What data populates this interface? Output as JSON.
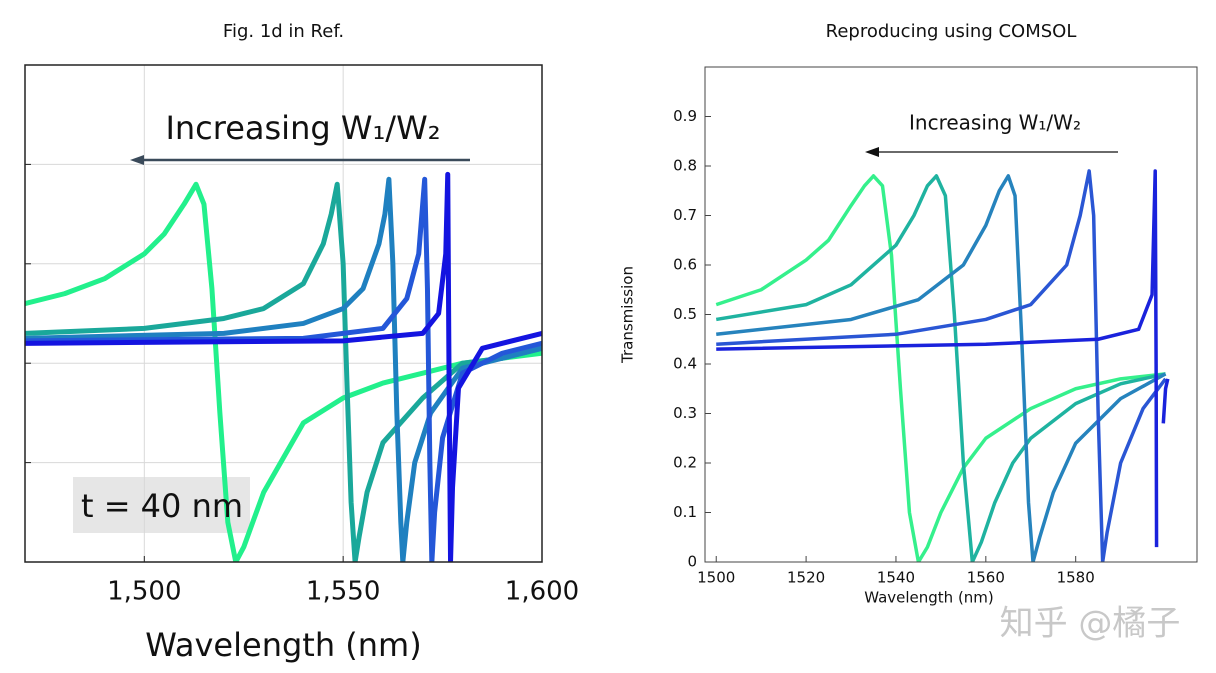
{
  "chart_data": [
    {
      "type": "line",
      "title": "Fig. 1d in Ref.",
      "x_label": "Wavelength (nm)",
      "annotations": [
        "Increasing W₁/W₂",
        "t = 40 nm"
      ],
      "xlim": [
        1470,
        1600
      ],
      "ylim": [
        0,
        1
      ],
      "xticks": [
        {
          "value": 1500,
          "label": "1,500"
        },
        {
          "value": 1550,
          "label": "1,550"
        },
        {
          "value": 1600,
          "label": "1,600"
        }
      ],
      "yticks": [
        0.2,
        0.4,
        0.6,
        0.8
      ],
      "show_ytick_labels": false,
      "grid": true,
      "series": [
        {
          "color": "#22f08c",
          "x": [
            1470,
            1480,
            1490,
            1500,
            1505,
            1510,
            1513,
            1515,
            1517,
            1519,
            1521,
            1523,
            1525,
            1530,
            1540,
            1550,
            1560,
            1570,
            1580,
            1590,
            1600
          ],
          "values": [
            0.52,
            0.54,
            0.57,
            0.62,
            0.66,
            0.72,
            0.76,
            0.72,
            0.55,
            0.3,
            0.08,
            0.0,
            0.03,
            0.14,
            0.28,
            0.33,
            0.36,
            0.38,
            0.4,
            0.41,
            0.42
          ]
        },
        {
          "color": "#1aa89a",
          "x": [
            1470,
            1500,
            1520,
            1530,
            1540,
            1545,
            1547,
            1548.5,
            1550,
            1551,
            1552,
            1553,
            1554,
            1556,
            1560,
            1570,
            1580,
            1590,
            1600
          ],
          "values": [
            0.46,
            0.47,
            0.49,
            0.51,
            0.56,
            0.64,
            0.7,
            0.76,
            0.6,
            0.35,
            0.12,
            0.0,
            0.05,
            0.14,
            0.24,
            0.33,
            0.4,
            0.41,
            0.43
          ]
        },
        {
          "color": "#1f80c0",
          "x": [
            1470,
            1520,
            1540,
            1550,
            1555,
            1559,
            1560.5,
            1561.5,
            1562.5,
            1563.5,
            1564.5,
            1565,
            1566,
            1568,
            1572,
            1580,
            1590,
            1600
          ],
          "values": [
            0.45,
            0.46,
            0.48,
            0.51,
            0.55,
            0.64,
            0.7,
            0.77,
            0.6,
            0.3,
            0.08,
            0.0,
            0.08,
            0.2,
            0.3,
            0.39,
            0.41,
            0.43
          ]
        },
        {
          "color": "#2457d8",
          "x": [
            1470,
            1540,
            1560,
            1566,
            1569,
            1570.5,
            1571.2,
            1571.8,
            1572.3,
            1573,
            1575,
            1580,
            1590,
            1600
          ],
          "values": [
            0.445,
            0.45,
            0.47,
            0.53,
            0.62,
            0.77,
            0.55,
            0.2,
            0.0,
            0.1,
            0.25,
            0.38,
            0.42,
            0.44
          ]
        },
        {
          "color": "#1414e0",
          "x": [
            1470,
            1550,
            1570,
            1574,
            1575.8,
            1576.3,
            1576.6,
            1577,
            1577.5,
            1579,
            1585,
            1600
          ],
          "values": [
            0.44,
            0.445,
            0.46,
            0.5,
            0.62,
            0.78,
            0.4,
            0.0,
            0.15,
            0.35,
            0.43,
            0.46
          ]
        }
      ]
    },
    {
      "type": "line",
      "title": "Reproducing using COMSOL",
      "x_label": "Wavelength (nm)",
      "y_label": "Transmission",
      "annotations": [
        "Increasing W₁/W₂"
      ],
      "xlim": [
        1497.5,
        1607
      ],
      "ylim": [
        0,
        1
      ],
      "xticks": [
        1500,
        1520,
        1540,
        1560,
        1580
      ],
      "yticks": [
        0,
        0.1,
        0.2,
        0.3,
        0.4,
        0.5,
        0.6,
        0.7,
        0.8,
        0.9
      ],
      "show_ytick_labels": true,
      "grid": false,
      "series": [
        {
          "color": "#35f08c",
          "x": [
            1500,
            1510,
            1520,
            1525,
            1530,
            1533,
            1535,
            1537,
            1539,
            1541,
            1543,
            1545,
            1547,
            1550,
            1555,
            1560,
            1570,
            1580,
            1590,
            1600
          ],
          "values": [
            0.52,
            0.55,
            0.61,
            0.65,
            0.72,
            0.76,
            0.78,
            0.76,
            0.62,
            0.35,
            0.1,
            0.0,
            0.03,
            0.1,
            0.19,
            0.25,
            0.31,
            0.35,
            0.37,
            0.38
          ]
        },
        {
          "color": "#1fb3a0",
          "x": [
            1500,
            1520,
            1530,
            1540,
            1544,
            1547,
            1549,
            1551,
            1553,
            1555,
            1557,
            1559,
            1562,
            1566,
            1570,
            1580,
            1590,
            1600
          ],
          "values": [
            0.49,
            0.52,
            0.56,
            0.64,
            0.7,
            0.76,
            0.78,
            0.74,
            0.5,
            0.2,
            0.0,
            0.04,
            0.12,
            0.2,
            0.25,
            0.32,
            0.36,
            0.38
          ]
        },
        {
          "color": "#2683bd",
          "x": [
            1500,
            1530,
            1545,
            1555,
            1560,
            1563,
            1565,
            1566.5,
            1568,
            1569.5,
            1570.5,
            1572,
            1575,
            1580,
            1590,
            1600
          ],
          "values": [
            0.46,
            0.49,
            0.53,
            0.6,
            0.68,
            0.75,
            0.78,
            0.74,
            0.45,
            0.12,
            0.0,
            0.05,
            0.14,
            0.24,
            0.33,
            0.38
          ]
        },
        {
          "color": "#2a56d4",
          "x": [
            1500,
            1540,
            1560,
            1570,
            1578,
            1581,
            1583,
            1584,
            1585,
            1586,
            1587,
            1590,
            1595,
            1600
          ],
          "values": [
            0.44,
            0.46,
            0.49,
            0.52,
            0.6,
            0.7,
            0.79,
            0.7,
            0.3,
            0.0,
            0.06,
            0.2,
            0.31,
            0.37
          ]
        },
        {
          "color": "#1a22dc",
          "x": [
            1500,
            1560,
            1585,
            1594,
            1597,
            1597.7,
            1597.9,
            1598,
            1599,
            1599.5,
            1600,
            1600.5
          ],
          "values": [
            0.43,
            0.44,
            0.45,
            0.47,
            0.54,
            0.79,
            0.4,
            0.03,
            null,
            0.28,
            0.35,
            0.37
          ]
        }
      ]
    }
  ],
  "watermark": "知乎 @橘子"
}
